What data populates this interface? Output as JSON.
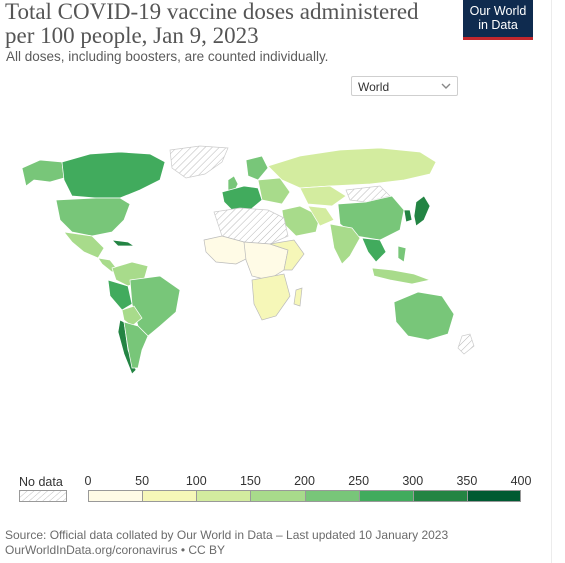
{
  "header": {
    "title": "Total COVID-19 vaccine doses administered per 100 people, Jan 9, 2023",
    "subtitle": "All doses, including boosters, are counted individually."
  },
  "logo": {
    "line1": "Our World",
    "line2": "in Data"
  },
  "region_select": {
    "value": "World"
  },
  "legend": {
    "no_data_label": "No data",
    "ticks": [
      "0",
      "50",
      "100",
      "150",
      "200",
      "250",
      "300",
      "350",
      "400"
    ],
    "bins": [
      {
        "from": 0,
        "to": 50,
        "color": "#fffbe6"
      },
      {
        "from": 50,
        "to": 100,
        "color": "#f6f7b8"
      },
      {
        "from": 100,
        "to": 150,
        "color": "#d3ec9f"
      },
      {
        "from": 150,
        "to": 200,
        "color": "#a8db8b"
      },
      {
        "from": 200,
        "to": 250,
        "color": "#78c679"
      },
      {
        "from": 250,
        "to": 300,
        "color": "#41ab5d"
      },
      {
        "from": 300,
        "to": 350,
        "color": "#238443"
      },
      {
        "from": 350,
        "to": 400,
        "color": "#005a32"
      }
    ]
  },
  "footer": {
    "source_line": "Source: Official data collated by Our World in Data – Last updated 10 January 2023",
    "url_line": "OurWorldInData.org/coronavirus • CC BY"
  }
}
